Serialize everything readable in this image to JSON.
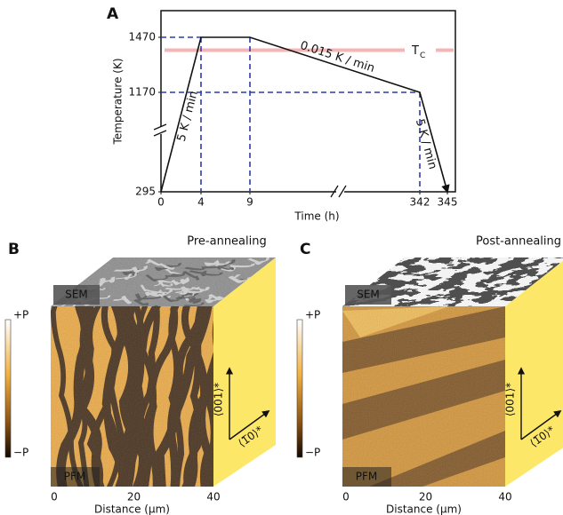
{
  "chart_data": {
    "type": "line",
    "panel": "A",
    "x_label": "Time (h)",
    "y_label": "Temperature (K)",
    "x": [
      0,
      4,
      9,
      342,
      345
    ],
    "series": [
      {
        "color": "#111111",
        "values": [
          295,
          1470,
          1470,
          1170,
          295
        ]
      }
    ],
    "xlim": [
      0,
      346
    ],
    "ylim": [
      295,
      1615
    ],
    "xticks": [
      0,
      4,
      9,
      342,
      345
    ],
    "yticks": [
      295,
      1170,
      1470
    ],
    "tc": {
      "label": "T",
      "sub": "C",
      "value": 1400,
      "color": "#f5a3a3",
      "text_color": "#d9343a"
    },
    "rate_labels": [
      "5 K / min",
      "0.015 K / min",
      "5 K / min"
    ],
    "rate_color": "#3a7d1e",
    "guide_color": "#2b3bb0"
  },
  "panels": [
    {
      "letter": "B",
      "title": "Pre-annealing",
      "sem_label": "SEM",
      "pfm_label": "PFM",
      "colorbar_top": "+P",
      "colorbar_bottom": "−P",
      "x_label": "Distance (μm)",
      "x_ticks": [
        0,
        20,
        40
      ],
      "axis_up": "⟨001⟩*",
      "axis_side": "⟨1̅0⟩*"
    },
    {
      "letter": "C",
      "title": "Post-annealing",
      "sem_label": "SEM",
      "pfm_label": "PFM",
      "colorbar_top": "+P",
      "colorbar_bottom": "−P",
      "x_label": "Distance (μm)",
      "x_ticks": [
        0,
        20,
        40
      ],
      "axis_up": "⟨001⟩*",
      "axis_side": "⟨1̅0⟩*"
    }
  ]
}
